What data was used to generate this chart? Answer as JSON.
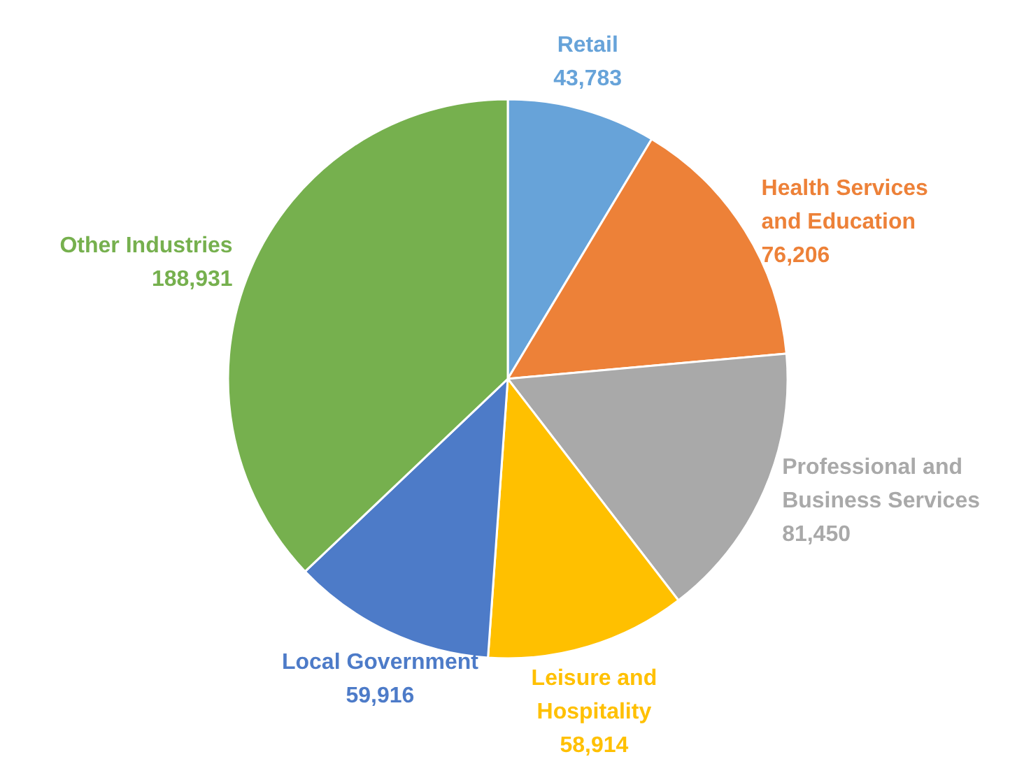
{
  "chart_data": {
    "type": "pie",
    "categories": [
      "Retail",
      "Health Services and Education",
      "Professional and Business Services",
      "Leisure and Hospitality",
      "Local Government",
      "Other Industries"
    ],
    "values": [
      43783,
      76206,
      81450,
      58914,
      59916,
      188931
    ],
    "colors": [
      "#67a3d9",
      "#ed8138",
      "#a9a9a9",
      "#ffc000",
      "#4d7bc8",
      "#76b04e"
    ],
    "value_labels": [
      "43,783",
      "76,206",
      "81,450",
      "58,914",
      "59,916",
      "188,931"
    ],
    "legend": false
  }
}
